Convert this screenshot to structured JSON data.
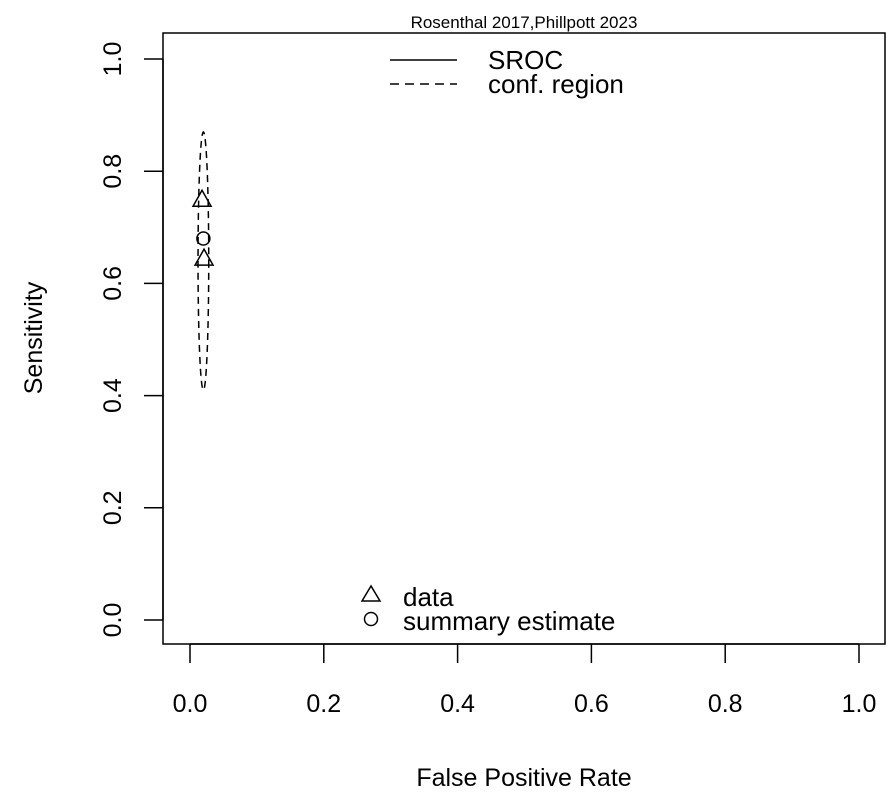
{
  "chart_data": {
    "type": "scatter",
    "title": "Rosenthal 2017,Phillpott 2023",
    "xlabel": "False Positive Rate",
    "ylabel": "Sensitivity",
    "xlim": [
      0,
      1
    ],
    "ylim": [
      0,
      1
    ],
    "xticks": [
      "0.0",
      "0.2",
      "0.4",
      "0.6",
      "0.8",
      "1.0"
    ],
    "yticks": [
      "0.0",
      "0.2",
      "0.4",
      "0.6",
      "0.8",
      "1.0"
    ],
    "grid": false,
    "legends": [
      {
        "placement": "top-center",
        "entries": [
          {
            "label": "SROC",
            "line": "solid"
          },
          {
            "label": "conf. region",
            "line": "dashed"
          }
        ]
      },
      {
        "placement": "bottom-center",
        "entries": [
          {
            "label": "data",
            "marker": "triangle"
          },
          {
            "label": "summary estimate",
            "marker": "circle"
          }
        ]
      }
    ],
    "series": [
      {
        "name": "data",
        "marker": "triangle",
        "points": [
          {
            "x": 0.018,
            "y": 0.75
          },
          {
            "x": 0.021,
            "y": 0.645
          }
        ]
      },
      {
        "name": "summary estimate",
        "marker": "circle",
        "points": [
          {
            "x": 0.02,
            "y": 0.68
          }
        ]
      }
    ],
    "confidence_region": {
      "style": "dashed",
      "center": {
        "x": 0.02,
        "y": 0.64
      },
      "x_range": [
        0.012,
        0.028
      ],
      "y_range": [
        0.41,
        0.87
      ]
    }
  }
}
